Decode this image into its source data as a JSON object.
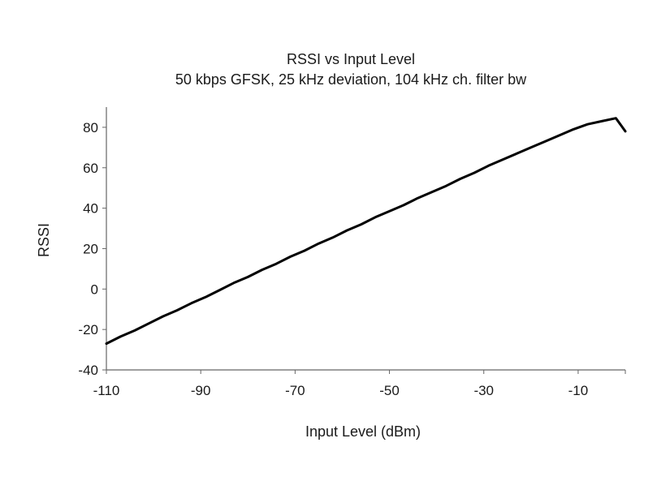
{
  "chart_data": {
    "type": "line",
    "title": "RSSI vs Input Level",
    "subtitle": "50 kbps GFSK, 25 kHz deviation, 104 kHz ch. filter bw",
    "xlabel": "Input Level (dBm)",
    "ylabel": "RSSI",
    "xlim": [
      -110,
      0
    ],
    "ylim": [
      -40,
      90
    ],
    "x_ticks": [
      -110,
      -90,
      -70,
      -50,
      -30,
      -10
    ],
    "x_tick_labels": [
      "-110",
      "-90",
      "-70",
      "-50",
      "-30",
      "-10"
    ],
    "y_ticks": [
      -40,
      -20,
      0,
      20,
      40,
      60,
      80
    ],
    "y_tick_labels": [
      "-40",
      "-20",
      "0",
      "20",
      "40",
      "60",
      "80"
    ],
    "grid": false,
    "legend": "none",
    "series": [
      {
        "color": "#000000",
        "x": [
          -110,
          -107,
          -104,
          -101,
          -98,
          -95,
          -92,
          -89,
          -86,
          -83,
          -80,
          -77,
          -74,
          -71,
          -68,
          -65,
          -62,
          -59,
          -56,
          -53,
          -50,
          -47,
          -44,
          -41,
          -38,
          -35,
          -32,
          -29,
          -26,
          -23,
          -20,
          -17,
          -14,
          -11,
          -8,
          -5,
          -2,
          0
        ],
        "y": [
          -27,
          -23.5,
          -20.5,
          -17,
          -13.5,
          -10.5,
          -7,
          -4,
          -0.5,
          3,
          6,
          9.5,
          12.5,
          16,
          19,
          22.5,
          25.5,
          29,
          32,
          35.5,
          38.5,
          41.5,
          45,
          48,
          51,
          54.5,
          57.5,
          61,
          64,
          67,
          70,
          73,
          76,
          79,
          81.5,
          83,
          84.5,
          78
        ]
      }
    ]
  }
}
